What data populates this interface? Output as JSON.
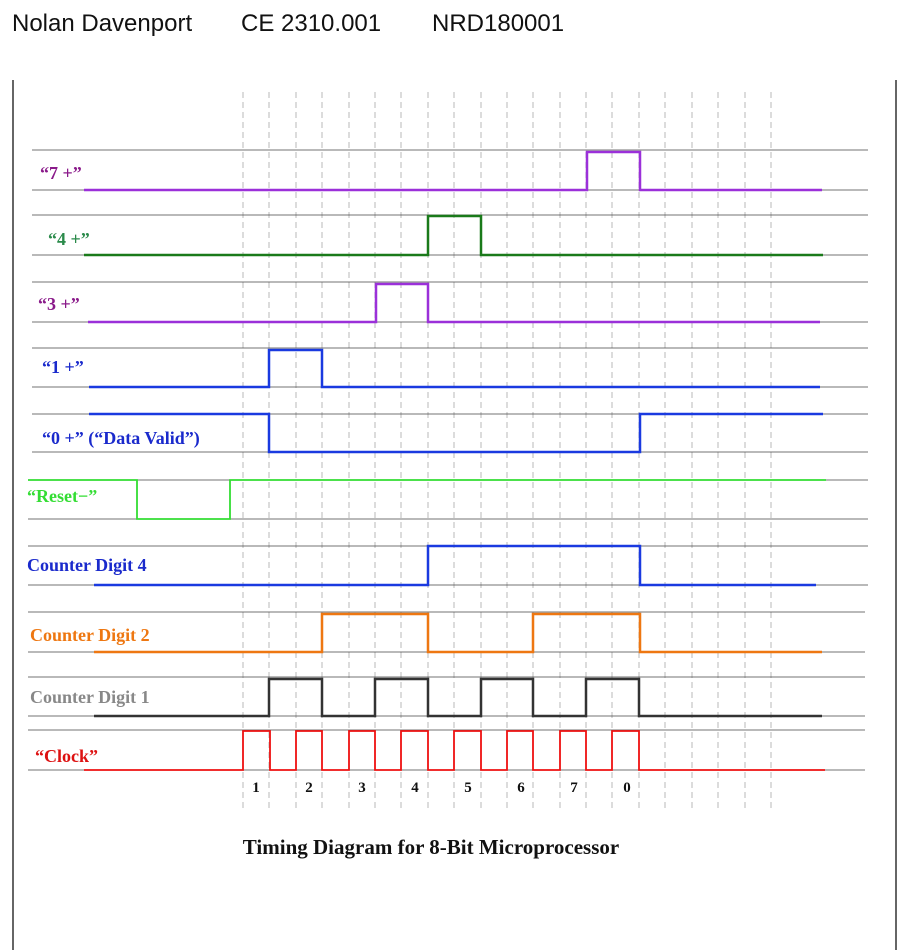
{
  "header": {
    "name": "Nolan Davenport",
    "course": "CE 2310.001",
    "id": "NRD180001"
  },
  "caption": "Timing Diagram for 8-Bit Microprocessor",
  "clock_ticks": [
    "1",
    "2",
    "3",
    "4",
    "5",
    "6",
    "7",
    "0"
  ],
  "signals": [
    {
      "label": "“7 +”",
      "color": "#8a1a8a",
      "trace_color": "#9b30d9"
    },
    {
      "label": "“4 +”",
      "color": "#2a8a4a",
      "trace_color": "#1a7a1a"
    },
    {
      "label": "“3 +”",
      "color": "#8a1a8a",
      "trace_color": "#9b30d9"
    },
    {
      "label": "“1 +”",
      "color": "#1a2acc",
      "trace_color": "#1a3ae0"
    },
    {
      "label": "“0 +” (“Data Valid”)",
      "color": "#1a2acc",
      "trace_color": "#1a3ae0"
    },
    {
      "label": "“Reset−”",
      "color": "#33dd33",
      "trace_color": "#33dd33"
    },
    {
      "label": "Counter Digit 4",
      "color": "#1a2acc",
      "trace_color": "#1a3ae0"
    },
    {
      "label": "Counter Digit 2",
      "color": "#ee7711",
      "trace_color": "#ee7711"
    },
    {
      "label": "Counter Digit 1",
      "color": "#888888",
      "trace_color": "#333333"
    },
    {
      "label": "“Clock”",
      "color": "#dd1111",
      "trace_color": "#ee1111"
    }
  ]
}
